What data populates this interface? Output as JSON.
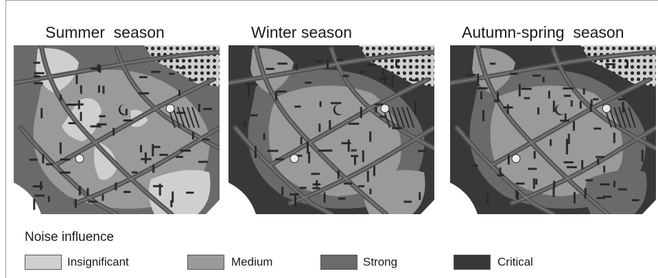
{
  "panels": [
    {
      "title": "Summer  season"
    },
    {
      "title": "Winter season"
    },
    {
      "title": "Autumn-spring  season"
    }
  ],
  "legend": {
    "title": "Noise influence",
    "items": [
      {
        "label": "Insignificant",
        "color": "#cfcfcf"
      },
      {
        "label": "Medium",
        "color": "#9a9a9a"
      },
      {
        "label": "Strong",
        "color": "#6a6a6a"
      },
      {
        "label": "Critical",
        "color": "#383838"
      }
    ]
  },
  "colors": {
    "insignificant": "#cfcfcf",
    "medium": "#9a9a9a",
    "strong": "#6a6a6a",
    "critical": "#383838",
    "road": "#555555",
    "building": "#2a2a2a",
    "paper": "#ffffff"
  }
}
